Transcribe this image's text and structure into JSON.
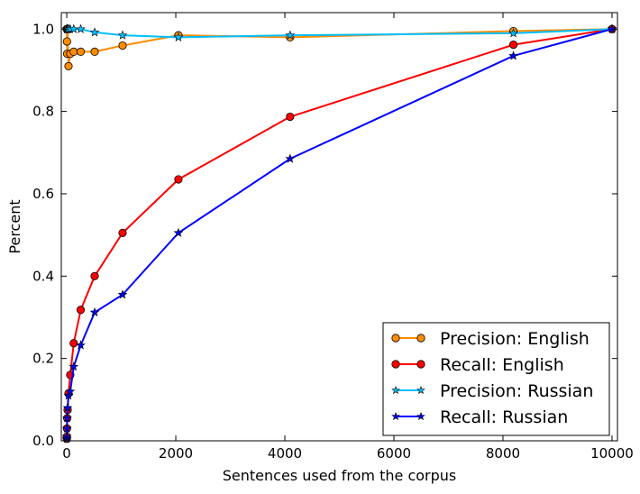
{
  "chart_data": {
    "type": "line",
    "title": "",
    "xlabel": "Sentences used from the corpus",
    "ylabel": "Percent",
    "xlim": [
      -100,
      10100
    ],
    "ylim": [
      0.0,
      1.04
    ],
    "xticks": [
      0,
      2000,
      4000,
      6000,
      8000,
      10000
    ],
    "yticks": [
      0.0,
      0.2,
      0.4,
      0.6,
      0.8,
      1.0
    ],
    "xtick_labels": [
      "0",
      "2000",
      "4000",
      "6000",
      "8000",
      "10000"
    ],
    "ytick_labels": [
      "0.0",
      "0.2",
      "0.4",
      "0.6",
      "0.8",
      "1.0"
    ],
    "grid": false,
    "legend_position": "lower-right",
    "series": [
      {
        "name": "Precision: English",
        "color": "#ff8c00",
        "marker": "circle",
        "x": [
          1,
          2,
          4,
          8,
          16,
          32,
          64,
          128,
          256,
          512,
          1024,
          2048,
          4096,
          8192,
          10000
        ],
        "y": [
          1.0,
          1.0,
          0.97,
          0.94,
          1.0,
          0.91,
          0.94,
          0.945,
          0.945,
          0.945,
          0.96,
          0.985,
          0.98,
          0.995,
          1.0
        ]
      },
      {
        "name": "Recall: English",
        "color": "#ff0000",
        "marker": "circle",
        "x": [
          1,
          2,
          4,
          8,
          16,
          32,
          64,
          128,
          256,
          512,
          1024,
          2048,
          4096,
          8192,
          10000
        ],
        "y": [
          0.005,
          0.01,
          0.03,
          0.055,
          0.075,
          0.115,
          0.16,
          0.237,
          0.318,
          0.4,
          0.505,
          0.635,
          0.787,
          0.962,
          1.0
        ]
      },
      {
        "name": "Precision: Russian",
        "color": "#00bfff",
        "marker": "star",
        "x": [
          1,
          2,
          4,
          8,
          16,
          32,
          64,
          128,
          256,
          512,
          1024,
          2048,
          4096,
          8192,
          10000
        ],
        "y": [
          1.0,
          1.0,
          1.0,
          1.0,
          1.0,
          1.0,
          1.0,
          1.0,
          1.0,
          0.992,
          0.985,
          0.98,
          0.985,
          0.99,
          1.0
        ]
      },
      {
        "name": "Recall: Russian",
        "color": "#0000ff",
        "marker": "star",
        "x": [
          1,
          2,
          4,
          8,
          16,
          32,
          64,
          128,
          256,
          512,
          1024,
          2048,
          4096,
          8192,
          10000
        ],
        "y": [
          0.005,
          0.01,
          0.03,
          0.055,
          0.08,
          0.11,
          0.12,
          0.18,
          0.232,
          0.312,
          0.355,
          0.505,
          0.685,
          0.935,
          1.0
        ]
      }
    ]
  }
}
